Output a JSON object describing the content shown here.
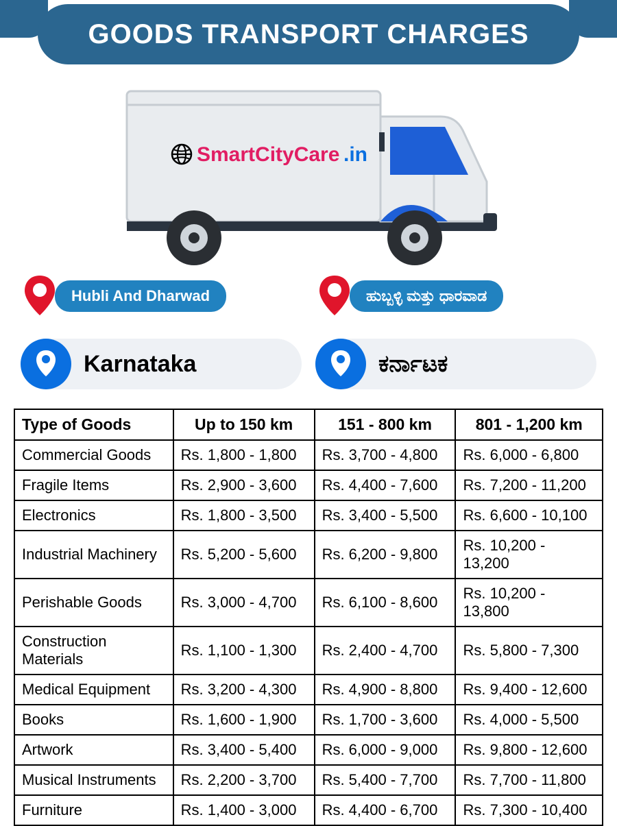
{
  "header": {
    "title": "GOODS TRANSPORT CHARGES"
  },
  "brand": {
    "globe_icon": "globe-icon",
    "text_a": "SmartCityCare",
    "text_b": ".in",
    "color_a": "#e11d63",
    "color_b": "#0a6fe0"
  },
  "colors": {
    "banner": "#2b6690",
    "chip": "#2182c0",
    "circle": "#0a6fe0",
    "pin_red": "#e0152b",
    "pill_bg": "#eef1f5",
    "truck_body": "#e9ecef",
    "truck_blue": "#1e5fd6",
    "truck_dark": "#2a3440",
    "wheel_dark": "#2a2e33",
    "wheel_light": "#cfd5db"
  },
  "locations": {
    "city_en": "Hubli And Dharwad",
    "city_kn": "ಹುಬ್ಬಳ್ಳಿ ಮತ್ತು ಧಾರವಾಡ",
    "state_en": "Karnataka",
    "state_kn": "ಕರ್ನಾಟಕ"
  },
  "table": {
    "headers": [
      "Type of Goods",
      "Up to 150 km",
      "151 - 800 km",
      "801 - 1,200 km"
    ],
    "rows": [
      [
        "Commercial Goods",
        "Rs. 1,800 - 1,800",
        "Rs. 3,700 - 4,800",
        "Rs. 6,000 - 6,800"
      ],
      [
        "Fragile Items",
        "Rs. 2,900 - 3,600",
        "Rs. 4,400 - 7,600",
        "Rs. 7,200 - 11,200"
      ],
      [
        "Electronics",
        "Rs. 1,800 - 3,500",
        "Rs. 3,400 - 5,500",
        "Rs. 6,600 - 10,100"
      ],
      [
        "Industrial Machinery",
        "Rs. 5,200 - 5,600",
        "Rs. 6,200 - 9,800",
        "Rs. 10,200 - 13,200"
      ],
      [
        "Perishable Goods",
        "Rs. 3,000 - 4,700",
        "Rs. 6,100 - 8,600",
        "Rs. 10,200 - 13,800"
      ],
      [
        "Construction Materials",
        "Rs. 1,100 - 1,300",
        "Rs. 2,400 - 4,700",
        "Rs. 5,800 - 7,300"
      ],
      [
        "Medical Equipment",
        "Rs. 3,200 - 4,300",
        "Rs. 4,900 - 8,800",
        "Rs. 9,400 - 12,600"
      ],
      [
        "Books",
        "Rs. 1,600 - 1,900",
        "Rs. 1,700 - 3,600",
        "Rs. 4,000 - 5,500"
      ],
      [
        "Artwork",
        "Rs. 3,400 - 5,400",
        "Rs. 6,000 - 9,000",
        "Rs. 9,800 - 12,600"
      ],
      [
        "Musical Instruments",
        "Rs. 2,200 - 3,700",
        "Rs. 5,400 - 7,700",
        "Rs. 7,700 - 11,800"
      ],
      [
        "Furniture",
        "Rs. 1,400 - 3,000",
        "Rs. 4,400 - 6,700",
        "Rs. 7,300 - 10,400"
      ]
    ]
  }
}
